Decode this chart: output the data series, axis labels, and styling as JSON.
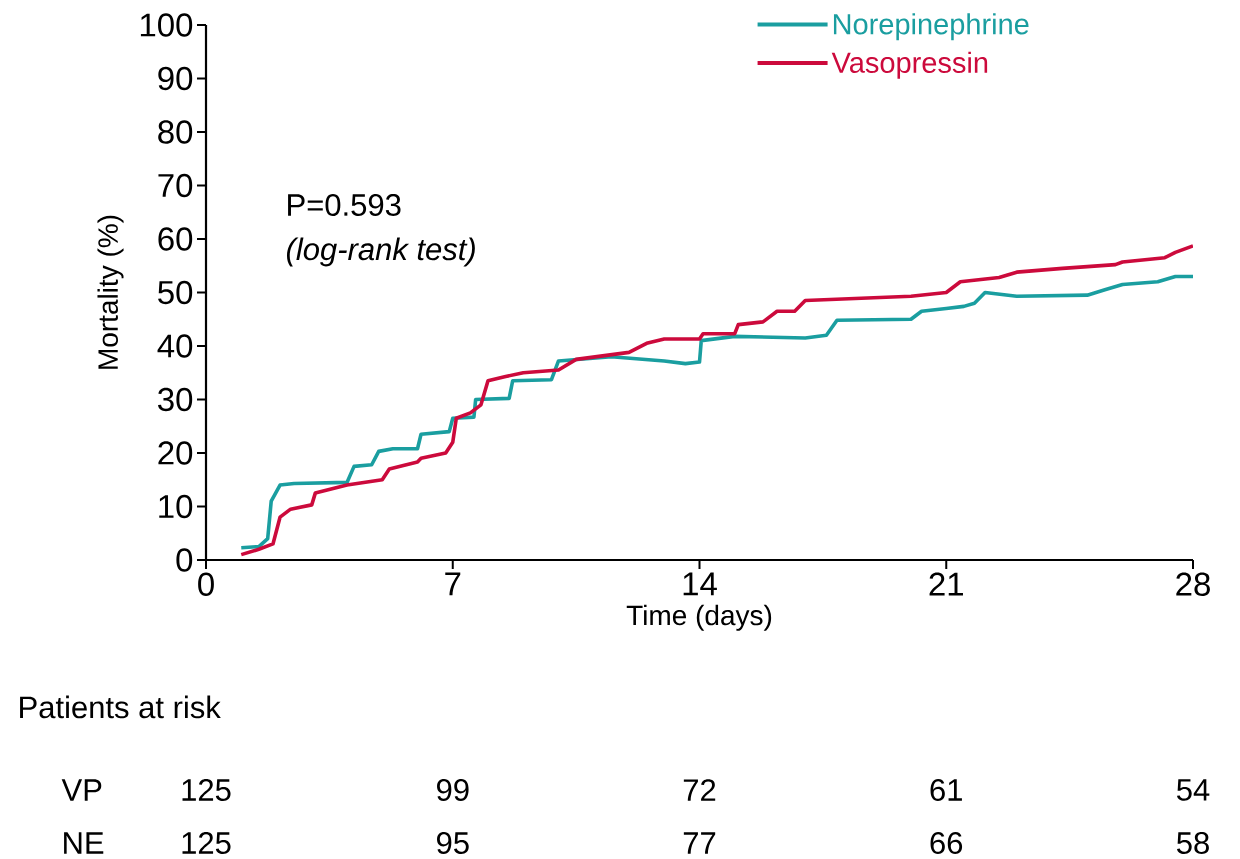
{
  "chart_data": {
    "type": "line",
    "xlabel": "Time (days)",
    "ylabel": "Mortality (%)",
    "xlim": [
      0,
      28
    ],
    "ylim": [
      0,
      100
    ],
    "xticks": [
      0,
      7,
      14,
      21,
      28
    ],
    "yticks": [
      0,
      10,
      20,
      30,
      40,
      50,
      60,
      70,
      80,
      90,
      100
    ],
    "grid": false,
    "legend": "top right",
    "line_style": "solid",
    "marker": "none",
    "series": [
      {
        "name": "Norepinephrine",
        "color": "#1a9ea0",
        "x": [
          1.0,
          1.5,
          1.75,
          1.85,
          2.1,
          2.5,
          4.0,
          4.2,
          4.7,
          4.9,
          5.3,
          6.0,
          6.1,
          6.9,
          7.0,
          7.6,
          7.65,
          8.6,
          8.7,
          9.8,
          10.0,
          11.5,
          13.0,
          13.6,
          14.0,
          14.05,
          15.0,
          17.0,
          17.6,
          17.9,
          20.0,
          20.3,
          21.0,
          21.5,
          21.8,
          22.1,
          23.0,
          25.0,
          25.5,
          26.0,
          27.0,
          27.5,
          28.0
        ],
        "values": [
          2.3,
          2.5,
          4,
          11,
          14,
          14.3,
          14.5,
          17.5,
          17.8,
          20.3,
          20.8,
          20.8,
          23.5,
          24,
          26.5,
          26.7,
          30,
          30.2,
          33.5,
          33.7,
          37.2,
          38,
          37.2,
          36.7,
          37,
          41,
          41.8,
          41.5,
          42,
          44.8,
          45,
          46.5,
          47,
          47.4,
          48,
          50,
          49.3,
          49.5,
          50.5,
          51.5,
          52,
          53,
          53
        ]
      },
      {
        "name": "Vasopressin",
        "color": "#cc0a3c",
        "x": [
          1.0,
          1.5,
          1.9,
          2.1,
          2.4,
          3.0,
          3.1,
          4.0,
          5.0,
          5.2,
          6.0,
          6.1,
          6.8,
          7.0,
          7.1,
          7.5,
          7.8,
          8.0,
          8.5,
          9.0,
          10.0,
          10.5,
          12.0,
          12.5,
          13.0,
          14.0,
          14.1,
          15.0,
          15.1,
          15.8,
          16.2,
          16.7,
          17.0,
          20.0,
          21.0,
          21.4,
          22.5,
          23.0,
          24.3,
          25.8,
          26.0,
          27.2,
          27.5,
          28.0
        ],
        "values": [
          1.0,
          2,
          3,
          8,
          9.5,
          10.3,
          12.5,
          14,
          15,
          17,
          18.3,
          19,
          20,
          22,
          26.5,
          27.5,
          29,
          33.5,
          34.3,
          35,
          35.5,
          37.5,
          38.8,
          40.5,
          41.3,
          41.3,
          42.3,
          42.3,
          44,
          44.5,
          46.5,
          46.5,
          48.5,
          49.3,
          50,
          52,
          52.8,
          53.8,
          54.5,
          55.2,
          55.7,
          56.5,
          57.5,
          58.7
        ]
      }
    ],
    "annotations": [
      "P=0.593",
      "(log-rank test)",
      "Patients at risk",
      "VP",
      "125",
      "99",
      "72",
      "61",
      "54",
      "NE",
      "125",
      "95",
      "77",
      "66",
      "58"
    ]
  }
}
